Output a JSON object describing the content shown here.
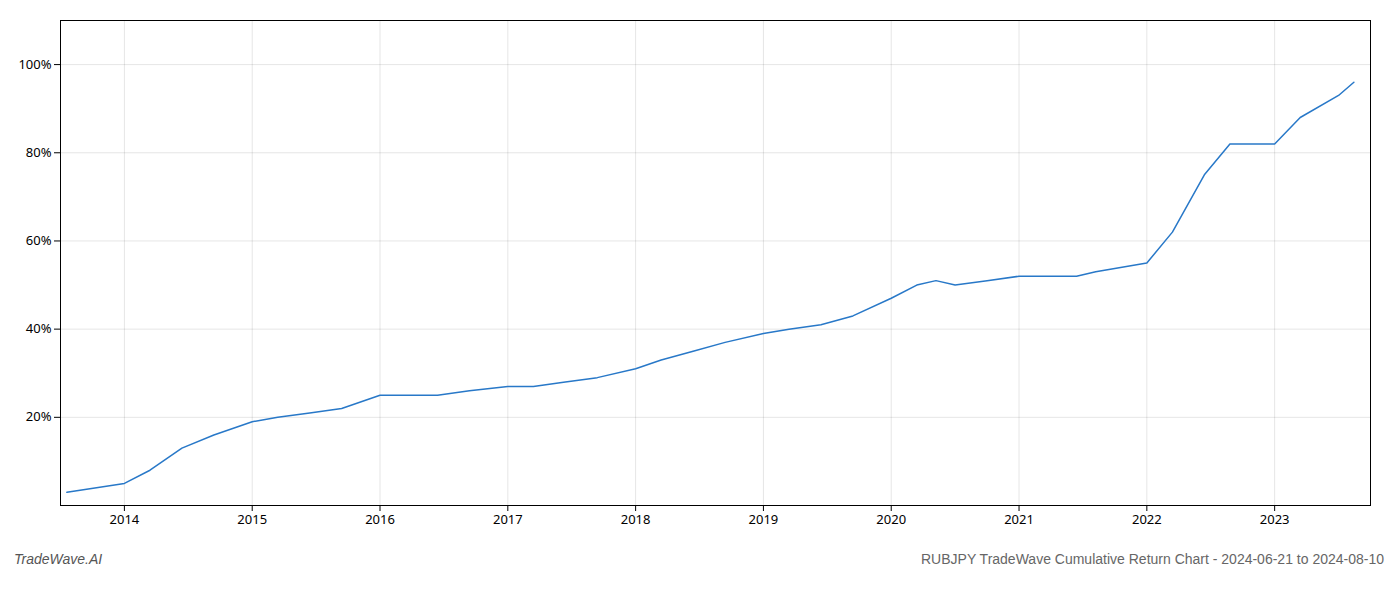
{
  "chart_data": {
    "type": "line",
    "title": "RUBJPY TradeWave Cumulative Return Chart - 2024-06-21 to 2024-08-10",
    "annotations": [
      "TradeWave.AI"
    ],
    "x": [
      2013.55,
      2014.0,
      2014.2,
      2014.45,
      2014.7,
      2015.0,
      2015.2,
      2015.45,
      2015.7,
      2016.0,
      2016.2,
      2016.45,
      2016.7,
      2017.0,
      2017.2,
      2017.45,
      2017.7,
      2018.0,
      2018.2,
      2018.45,
      2018.7,
      2019.0,
      2019.2,
      2019.45,
      2019.7,
      2020.0,
      2020.2,
      2020.35,
      2020.5,
      2020.75,
      2021.0,
      2021.2,
      2021.45,
      2021.6,
      2022.0,
      2022.2,
      2022.45,
      2022.65,
      2023.0,
      2023.2,
      2023.5,
      2023.62
    ],
    "values": [
      3,
      5,
      8,
      13,
      16,
      19,
      20,
      21,
      22,
      25,
      25,
      25,
      26,
      27,
      27,
      28,
      29,
      31,
      33,
      35,
      37,
      39,
      40,
      41,
      43,
      47,
      50,
      51,
      50,
      51,
      52,
      52,
      52,
      53,
      55,
      62,
      75,
      82,
      82,
      88,
      93,
      96
    ],
    "color": "#2878c8",
    "xlim": [
      2013.5,
      2023.75
    ],
    "ylim": [
      0,
      110
    ],
    "xticks": [
      2014,
      2015,
      2016,
      2017,
      2018,
      2019,
      2020,
      2021,
      2022,
      2023
    ],
    "yticks": [
      {
        "value": 20,
        "label": "20%"
      },
      {
        "value": 40,
        "label": "40%"
      },
      {
        "value": 60,
        "label": "60%"
      },
      {
        "value": 80,
        "label": "80%"
      },
      {
        "value": 100,
        "label": "100%"
      }
    ],
    "grid": true
  }
}
